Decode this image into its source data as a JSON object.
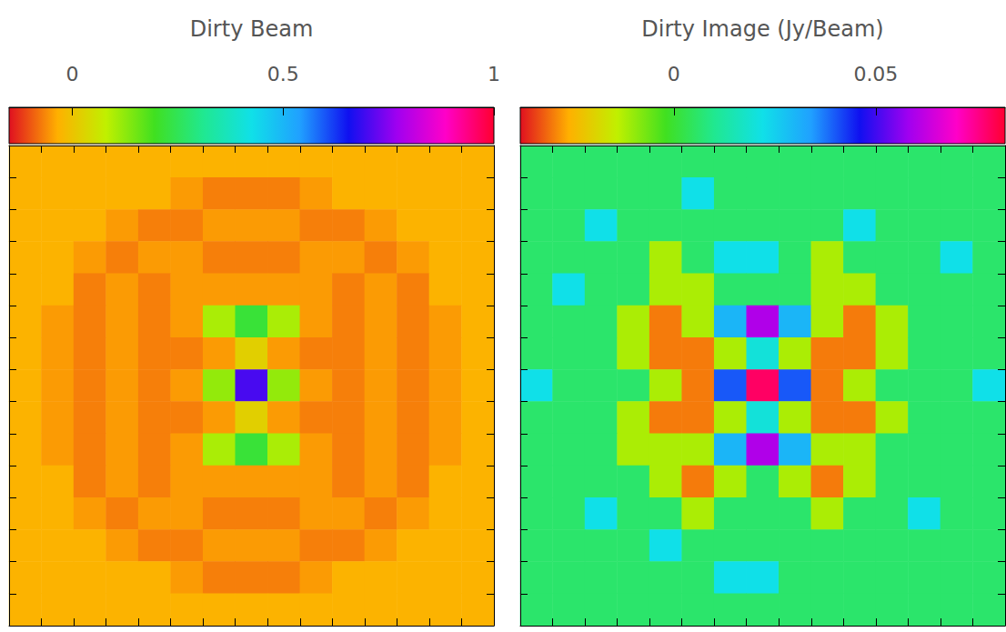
{
  "chart_data": [
    {
      "type": "heatmap",
      "title": "Dirty Beam",
      "tick_labels": false,
      "colorbar": {
        "range": [
          -0.15,
          1
        ],
        "ticks": [
          0,
          0.5,
          1
        ]
      },
      "cells": [
        [
          -0.03,
          -0.03,
          -0.03,
          -0.03,
          -0.03,
          -0.03,
          -0.03,
          -0.03,
          -0.03,
          -0.03,
          -0.03,
          -0.03,
          -0.03,
          -0.03,
          -0.03
        ],
        [
          -0.03,
          -0.03,
          -0.03,
          -0.03,
          -0.03,
          -0.05,
          -0.07,
          -0.07,
          -0.07,
          -0.05,
          -0.03,
          -0.03,
          -0.03,
          -0.03,
          -0.03
        ],
        [
          -0.03,
          -0.03,
          -0.03,
          -0.05,
          -0.07,
          -0.07,
          -0.05,
          -0.05,
          -0.05,
          -0.07,
          -0.07,
          -0.05,
          -0.03,
          -0.03,
          -0.03
        ],
        [
          -0.03,
          -0.03,
          -0.05,
          -0.07,
          -0.05,
          -0.05,
          -0.07,
          -0.07,
          -0.07,
          -0.05,
          -0.05,
          -0.07,
          -0.05,
          -0.03,
          -0.03
        ],
        [
          -0.03,
          -0.03,
          -0.07,
          -0.05,
          -0.07,
          -0.05,
          -0.05,
          -0.05,
          -0.05,
          -0.05,
          -0.07,
          -0.05,
          -0.07,
          -0.03,
          -0.03
        ],
        [
          -0.03,
          -0.05,
          -0.07,
          -0.05,
          -0.07,
          -0.05,
          0.1,
          0.22,
          0.1,
          -0.05,
          -0.07,
          -0.05,
          -0.07,
          -0.05,
          -0.03
        ],
        [
          -0.03,
          -0.05,
          -0.07,
          -0.05,
          -0.07,
          -0.07,
          -0.05,
          0.02,
          -0.05,
          -0.07,
          -0.07,
          -0.05,
          -0.07,
          -0.05,
          -0.03
        ],
        [
          -0.03,
          -0.05,
          -0.07,
          -0.05,
          -0.07,
          -0.05,
          0.12,
          0.7,
          0.12,
          -0.05,
          -0.07,
          -0.05,
          -0.07,
          -0.05,
          -0.03
        ],
        [
          -0.03,
          -0.05,
          -0.07,
          -0.05,
          -0.07,
          -0.07,
          -0.05,
          0.02,
          -0.05,
          -0.07,
          -0.07,
          -0.05,
          -0.07,
          -0.05,
          -0.03
        ],
        [
          -0.03,
          -0.05,
          -0.07,
          -0.05,
          -0.07,
          -0.05,
          0.1,
          0.22,
          0.1,
          -0.05,
          -0.07,
          -0.05,
          -0.07,
          -0.05,
          -0.03
        ],
        [
          -0.03,
          -0.03,
          -0.07,
          -0.05,
          -0.07,
          -0.05,
          -0.05,
          -0.05,
          -0.05,
          -0.05,
          -0.07,
          -0.05,
          -0.07,
          -0.03,
          -0.03
        ],
        [
          -0.03,
          -0.03,
          -0.05,
          -0.07,
          -0.05,
          -0.05,
          -0.07,
          -0.07,
          -0.07,
          -0.05,
          -0.05,
          -0.07,
          -0.05,
          -0.03,
          -0.03
        ],
        [
          -0.03,
          -0.03,
          -0.03,
          -0.05,
          -0.07,
          -0.07,
          -0.05,
          -0.05,
          -0.05,
          -0.07,
          -0.07,
          -0.05,
          -0.03,
          -0.03,
          -0.03
        ],
        [
          -0.03,
          -0.03,
          -0.03,
          -0.03,
          -0.03,
          -0.05,
          -0.07,
          -0.07,
          -0.07,
          -0.05,
          -0.03,
          -0.03,
          -0.03,
          -0.03,
          -0.03
        ],
        [
          -0.03,
          -0.03,
          -0.03,
          -0.03,
          -0.03,
          -0.03,
          -0.03,
          -0.03,
          -0.03,
          -0.03,
          -0.03,
          -0.03,
          -0.03,
          -0.03,
          -0.03
        ]
      ]
    },
    {
      "type": "heatmap",
      "title": "Dirty Image (Jy/Beam)",
      "tick_labels": false,
      "colorbar": {
        "range": [
          -0.038,
          0.082
        ],
        "ticks": [
          0,
          0.05
        ]
      },
      "cells": [
        [
          0.006,
          0.006,
          0.006,
          0.006,
          0.006,
          0.006,
          0.006,
          0.006,
          0.006,
          0.006,
          0.006,
          0.006,
          0.006,
          0.006,
          0.006
        ],
        [
          0.006,
          0.006,
          0.006,
          0.006,
          0.006,
          0.022,
          0.006,
          0.006,
          0.006,
          0.006,
          0.006,
          0.006,
          0.006,
          0.006,
          0.006
        ],
        [
          0.006,
          0.006,
          0.022,
          0.006,
          0.006,
          0.006,
          0.006,
          0.006,
          0.006,
          0.006,
          0.022,
          0.006,
          0.006,
          0.006,
          0.006
        ],
        [
          0.006,
          0.006,
          0.006,
          0.006,
          -0.012,
          0.006,
          0.022,
          0.022,
          0.006,
          -0.012,
          0.006,
          0.006,
          0.006,
          0.022,
          0.006
        ],
        [
          0.006,
          0.022,
          0.006,
          0.006,
          -0.012,
          -0.012,
          0.006,
          0.006,
          0.006,
          -0.012,
          -0.012,
          0.006,
          0.006,
          0.006,
          0.006
        ],
        [
          0.006,
          0.006,
          0.006,
          -0.012,
          -0.03,
          -0.012,
          0.03,
          0.06,
          0.03,
          -0.012,
          -0.03,
          -0.012,
          0.006,
          0.006,
          0.006
        ],
        [
          0.006,
          0.006,
          0.006,
          -0.012,
          -0.03,
          -0.03,
          -0.012,
          0.02,
          -0.012,
          -0.03,
          -0.03,
          -0.012,
          0.006,
          0.006,
          0.006
        ],
        [
          0.022,
          0.006,
          0.006,
          0.006,
          -0.012,
          -0.03,
          0.04,
          0.078,
          0.04,
          -0.03,
          -0.012,
          0.006,
          0.006,
          0.006,
          0.022
        ],
        [
          0.006,
          0.006,
          0.006,
          -0.012,
          -0.03,
          -0.03,
          -0.012,
          0.02,
          -0.012,
          -0.03,
          -0.03,
          -0.012,
          0.006,
          0.006,
          0.006
        ],
        [
          0.006,
          0.006,
          0.006,
          -0.012,
          -0.012,
          -0.012,
          0.03,
          0.06,
          0.03,
          -0.012,
          -0.012,
          0.006,
          0.006,
          0.006,
          0.006
        ],
        [
          0.006,
          0.006,
          0.006,
          0.006,
          -0.012,
          -0.03,
          -0.012,
          0.006,
          -0.012,
          -0.03,
          -0.012,
          0.006,
          0.006,
          0.006,
          0.006
        ],
        [
          0.006,
          0.006,
          0.022,
          0.006,
          0.006,
          -0.012,
          0.006,
          0.006,
          0.006,
          -0.012,
          0.006,
          0.006,
          0.022,
          0.006,
          0.006
        ],
        [
          0.006,
          0.006,
          0.006,
          0.006,
          0.022,
          0.006,
          0.006,
          0.006,
          0.006,
          0.006,
          0.006,
          0.006,
          0.006,
          0.006,
          0.006
        ],
        [
          0.006,
          0.006,
          0.006,
          0.006,
          0.006,
          0.006,
          0.022,
          0.022,
          0.006,
          0.006,
          0.006,
          0.006,
          0.006,
          0.006,
          0.006
        ],
        [
          0.006,
          0.006,
          0.006,
          0.006,
          0.006,
          0.006,
          0.006,
          0.006,
          0.006,
          0.006,
          0.006,
          0.006,
          0.006,
          0.006,
          0.006
        ]
      ]
    }
  ]
}
